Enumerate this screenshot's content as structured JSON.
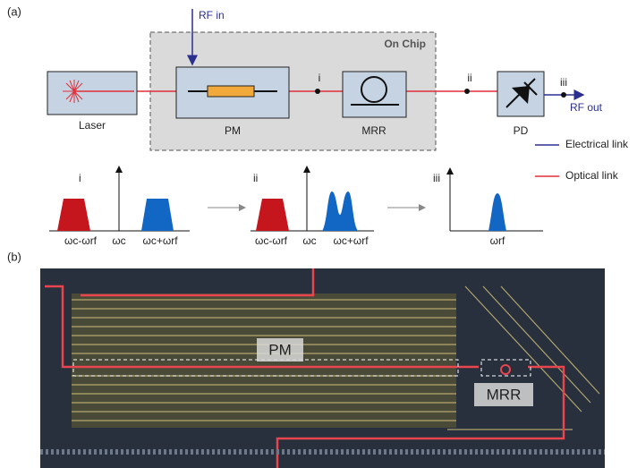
{
  "panel_a": {
    "label": "(a)",
    "rf_in": "RF in",
    "on_chip": "On Chip",
    "blocks": {
      "laser": "Laser",
      "pm": "PM",
      "mrr": "MRR",
      "pd": "PD"
    },
    "nodes": [
      "i",
      "ii",
      "iii"
    ],
    "rf_out": "RF out",
    "legend": {
      "electrical": "Electrical link",
      "optical": "Optical link"
    },
    "spectra": [
      {
        "label": "i",
        "ticks": [
          "ωc-ωrf",
          "ωc",
          "ωc+ωrf"
        ]
      },
      {
        "label": "ii",
        "ticks": [
          "ωc-ωrf",
          "ωc",
          "ωc+ωrf"
        ]
      },
      {
        "label": "iii",
        "ticks": [
          "ωrf"
        ]
      }
    ]
  },
  "panel_b": {
    "label": "(b)",
    "pm": "PM",
    "mrr": "MRR"
  }
}
